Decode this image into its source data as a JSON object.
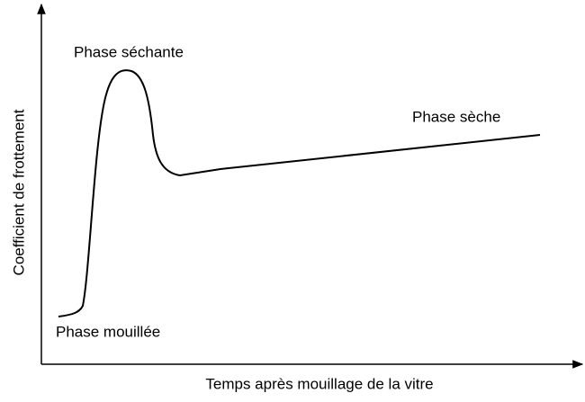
{
  "axes": {
    "x_label": "Temps après mouillage de la vitre",
    "y_label": "Coefficient de frottement"
  },
  "annotations": {
    "peak": "Phase séchante",
    "dry": "Phase sèche",
    "wet": "Phase mouillée"
  }
}
